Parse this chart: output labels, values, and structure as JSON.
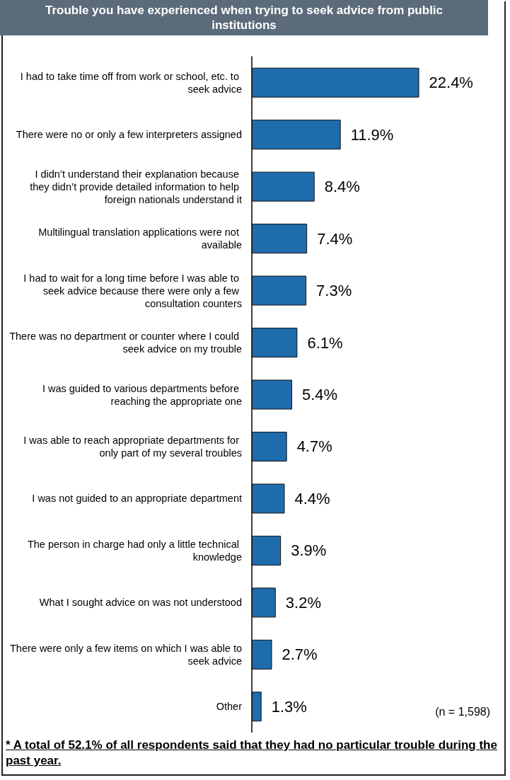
{
  "chart_data": {
    "type": "bar",
    "orientation": "horizontal",
    "title": "Trouble you have experienced when trying to seek advice from public institutions",
    "categories": [
      "I had to take time off from work or school, etc. to seek advice",
      "There were no or only a few interpreters assigned",
      "I didn’t understand their explanation because they didn’t provide detailed information to help foreign nationals understand it",
      "Multilingual translation applications were not available",
      "I had to wait for a long time before I was able to seek advice because there were only a few consultation counters",
      "There was no department or counter where I could seek advice on my trouble",
      "I was guided to various departments before reaching the appropriate one",
      "I was able to reach appropriate departments for only part of my several troubles",
      "I was not guided to an appropriate department",
      "The person in charge had only a little technical knowledge",
      "What I sought advice on was not understood",
      "There were only a few items on which I was able to seek advice",
      "Other"
    ],
    "values": [
      22.4,
      11.9,
      8.4,
      7.4,
      7.3,
      6.1,
      5.4,
      4.7,
      4.4,
      3.9,
      3.2,
      2.7,
      1.3
    ],
    "value_labels": [
      "22.4%",
      "11.9%",
      "8.4%",
      "7.4%",
      "7.3%",
      "6.1%",
      "5.4%",
      "4.7%",
      "4.4%",
      "3.9%",
      "3.2%",
      "2.7%",
      "1.3%"
    ],
    "color": "#1f6cad",
    "annotations": [
      "(n = 1,598)",
      "* A total of 52.1% of all respondents said that they had no particular trouble during the past year."
    ]
  }
}
